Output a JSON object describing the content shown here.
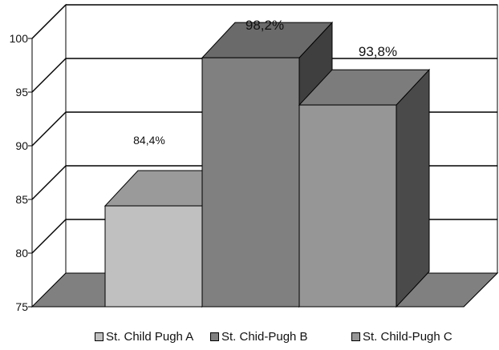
{
  "chart_data": {
    "type": "bar",
    "title": "",
    "xlabel": "",
    "ylabel": "",
    "ylim": [
      75,
      100
    ],
    "yticks": [
      "75",
      "80",
      "85",
      "90",
      "95",
      "100"
    ],
    "categories": [
      "St. Child Pugh A",
      "St. Chid-Pugh B",
      "St. Child-Pugh C"
    ],
    "values": [
      84.4,
      98.2,
      93.8
    ],
    "data_labels": [
      "84,4%",
      "98,2%",
      "93,8%"
    ],
    "colors": [
      "#c0c0c0",
      "#808080",
      "#969696"
    ],
    "grid": true,
    "three_d": true,
    "legend": "bottom"
  }
}
